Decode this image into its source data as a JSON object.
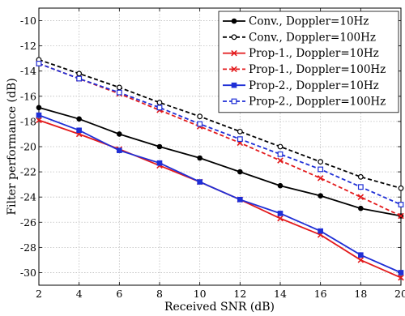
{
  "chart_data": {
    "type": "line",
    "title": "",
    "xlabel": "Received SNR (dB)",
    "ylabel": "Filter performance (dB)",
    "xlim": [
      2,
      20
    ],
    "ylim": [
      -31,
      -9
    ],
    "xticks": [
      2,
      4,
      6,
      8,
      10,
      12,
      14,
      16,
      18,
      20
    ],
    "yticks": [
      -30,
      -28,
      -26,
      -24,
      -22,
      -20,
      -18,
      -16,
      -14,
      -12,
      -10
    ],
    "grid": true,
    "legend_position": "top-right",
    "series": [
      {
        "name": "Conv., Doppler=10Hz",
        "color": "#000000",
        "line_style": "solid",
        "marker": "filled-circle",
        "x": [
          2,
          4,
          6,
          8,
          10,
          12,
          14,
          16,
          18,
          20
        ],
        "y": [
          -16.9,
          -17.8,
          -19.0,
          -20.0,
          -20.9,
          -22.0,
          -23.1,
          -23.9,
          -24.9,
          -25.5
        ]
      },
      {
        "name": "Conv., Doppler=100Hz",
        "color": "#000000",
        "line_style": "dashed",
        "marker": "open-circle",
        "x": [
          2,
          4,
          6,
          8,
          10,
          12,
          14,
          16,
          18,
          20
        ],
        "y": [
          -13.1,
          -14.2,
          -15.3,
          -16.5,
          -17.6,
          -18.8,
          -20.0,
          -21.2,
          -22.4,
          -23.3
        ]
      },
      {
        "name": "Prop-1., Doppler=10Hz",
        "color": "#e31a1c",
        "line_style": "solid",
        "marker": "x",
        "x": [
          2,
          4,
          6,
          8,
          10,
          12,
          14,
          16,
          18,
          20
        ],
        "y": [
          -17.9,
          -19.0,
          -20.2,
          -21.5,
          -22.8,
          -24.2,
          -25.7,
          -27.0,
          -29.0,
          -30.4
        ]
      },
      {
        "name": "Prop-1., Doppler=100Hz",
        "color": "#e31a1c",
        "line_style": "dashed",
        "marker": "x",
        "x": [
          2,
          4,
          6,
          8,
          10,
          12,
          14,
          16,
          18,
          20
        ],
        "y": [
          -13.4,
          -14.6,
          -15.8,
          -17.1,
          -18.4,
          -19.7,
          -21.1,
          -22.5,
          -24.0,
          -25.5
        ]
      },
      {
        "name": "Prop-2., Doppler=10Hz",
        "color": "#1f2fd6",
        "line_style": "solid",
        "marker": "filled-square",
        "x": [
          2,
          4,
          6,
          8,
          10,
          12,
          14,
          16,
          18,
          20
        ],
        "y": [
          -17.5,
          -18.7,
          -20.3,
          -21.3,
          -22.8,
          -24.2,
          -25.3,
          -26.7,
          -28.6,
          -30.0
        ]
      },
      {
        "name": "Prop-2., Doppler=100Hz",
        "color": "#1f2fd6",
        "line_style": "dashed",
        "marker": "open-square",
        "x": [
          2,
          4,
          6,
          8,
          10,
          12,
          14,
          16,
          18,
          20
        ],
        "y": [
          -13.4,
          -14.6,
          -15.7,
          -16.9,
          -18.2,
          -19.4,
          -20.6,
          -21.8,
          -23.2,
          -24.6
        ]
      }
    ]
  }
}
